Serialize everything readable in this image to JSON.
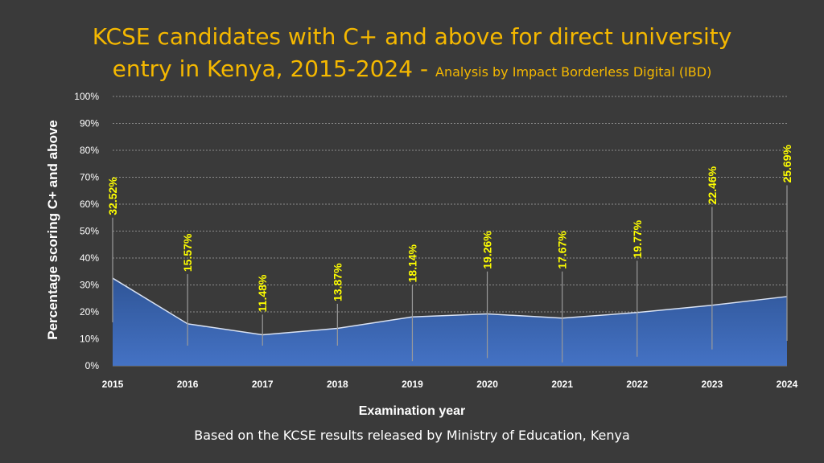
{
  "title_main": "KCSE candidates with C+ and above for direct university",
  "title_line2": "entry in Kenya, 2015-2024 - ",
  "title_sub": "Analysis by Impact Borderless Digital (IBD)",
  "footer_source": "Based on the KCSE results released by Ministry of Education, Kenya",
  "colors": {
    "background": "#3a3a3a",
    "title": "#f5b800",
    "data_label": "#ffff00",
    "area_top": "#2f5597",
    "area_bottom": "#4472c4",
    "line": "#d9e2f3",
    "grid": "#8c8c8c"
  },
  "chart_data": {
    "type": "area",
    "xlabel": "Examination year",
    "ylabel": "Percentage scoring C+ and above",
    "categories": [
      "2015",
      "2016",
      "2017",
      "2018",
      "2019",
      "2020",
      "2021",
      "2022",
      "2023",
      "2024"
    ],
    "series": [
      {
        "values": [
          32.52,
          15.57,
          11.48,
          13.87,
          18.14,
          19.26,
          17.67,
          19.77,
          22.46,
          25.69
        ],
        "labels": [
          "32.52%",
          "15.57%",
          "11.48%",
          "13.87%",
          "18.14%",
          "19.26%",
          "17.67%",
          "19.77%",
          "22.46%",
          "25.69%"
        ]
      }
    ],
    "yticks": [
      "0%",
      "10%",
      "20%",
      "30%",
      "40%",
      "50%",
      "60%",
      "70%",
      "80%",
      "90%",
      "100%"
    ],
    "ylim": [
      0,
      100
    ],
    "grid": true,
    "legend": "none"
  }
}
